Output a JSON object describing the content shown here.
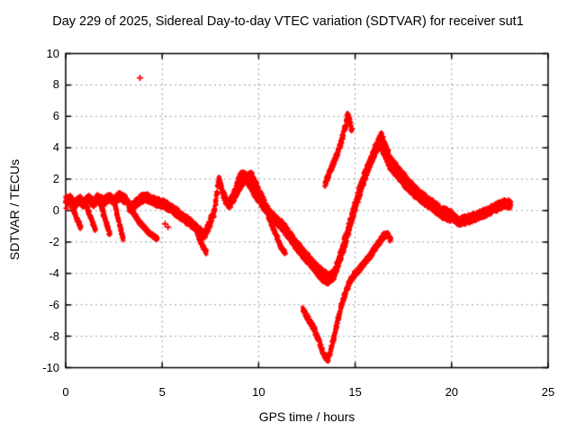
{
  "chart_data": {
    "type": "scatter",
    "title": "Day 229 of 2025, Sidereal Day-to-day VTEC variation (SDTVAR) for receiver sut1",
    "xlabel": "GPS time / hours",
    "ylabel": "SDTVAR / TECUs",
    "xlim": [
      0,
      25
    ],
    "ylim": [
      -10,
      10
    ],
    "x_ticks": [
      0,
      5,
      10,
      15,
      20,
      25
    ],
    "y_ticks": [
      10,
      8,
      6,
      4,
      2,
      0,
      -2,
      -4,
      -6,
      -8,
      -10
    ],
    "grid": true,
    "legend": "none",
    "marker": "plus",
    "marker_color": "#ff0000",
    "grid_color": "#9a9a9a",
    "border_color": "#000000",
    "series": [
      {
        "name": "main-band",
        "halfwidth": 0.28,
        "points": [
          [
            0.0,
            0.55
          ],
          [
            0.2,
            0.8
          ],
          [
            0.45,
            0.35
          ],
          [
            0.7,
            0.7
          ],
          [
            0.95,
            0.45
          ],
          [
            1.2,
            0.75
          ],
          [
            1.45,
            0.5
          ],
          [
            1.7,
            0.8
          ],
          [
            1.95,
            0.55
          ],
          [
            2.2,
            0.85
          ],
          [
            2.5,
            0.65
          ],
          [
            2.8,
            0.9
          ],
          [
            3.1,
            0.7
          ],
          [
            3.35,
            0.15
          ],
          [
            3.6,
            0.4
          ],
          [
            3.9,
            0.75
          ],
          [
            4.2,
            0.85
          ],
          [
            4.5,
            0.65
          ],
          [
            4.8,
            0.5
          ],
          [
            5.1,
            0.4
          ],
          [
            5.5,
            0.1
          ],
          [
            6.0,
            -0.35
          ],
          [
            6.5,
            -0.8
          ],
          [
            6.9,
            -1.3
          ],
          [
            7.15,
            -1.6
          ],
          [
            7.4,
            -1.0
          ],
          [
            7.7,
            -0.1
          ],
          [
            7.95,
            2.1
          ],
          [
            8.15,
            1.05
          ],
          [
            8.45,
            0.35
          ],
          [
            8.75,
            1.1
          ],
          [
            9.05,
            2.25
          ],
          [
            9.35,
            2.15
          ],
          [
            9.65,
            1.4
          ],
          [
            9.95,
            0.85
          ],
          [
            10.25,
            0.3
          ],
          [
            10.6,
            -0.25
          ],
          [
            10.95,
            -0.6
          ],
          [
            11.35,
            -1.1
          ],
          [
            11.75,
            -1.8
          ],
          [
            12.15,
            -2.45
          ],
          [
            12.55,
            -3.0
          ],
          [
            12.95,
            -3.6
          ],
          [
            13.35,
            -4.05
          ],
          [
            13.7,
            -4.3
          ],
          [
            14.0,
            -3.7
          ],
          [
            14.3,
            -2.6
          ],
          [
            14.6,
            -1.35
          ],
          [
            14.9,
            -0.05
          ],
          [
            15.2,
            1.2
          ],
          [
            15.5,
            2.3
          ],
          [
            15.8,
            3.2
          ],
          [
            16.1,
            4.1
          ],
          [
            16.35,
            4.75
          ],
          [
            16.6,
            3.95
          ],
          [
            16.9,
            3.1
          ],
          [
            17.25,
            2.5
          ],
          [
            17.6,
            2.0
          ],
          [
            18.0,
            1.45
          ],
          [
            18.4,
            1.0
          ],
          [
            18.8,
            0.6
          ],
          [
            19.2,
            0.25
          ],
          [
            19.6,
            -0.05
          ],
          [
            20.0,
            -0.3
          ],
          [
            20.35,
            -0.7
          ],
          [
            20.7,
            -0.6
          ],
          [
            21.1,
            -0.45
          ],
          [
            21.5,
            -0.25
          ],
          [
            21.9,
            -0.05
          ],
          [
            22.3,
            0.2
          ],
          [
            22.7,
            0.45
          ],
          [
            23.1,
            0.4
          ]
        ]
      },
      {
        "name": "second-band",
        "halfwidth": 0.22,
        "points": [
          [
            8.55,
            0.4
          ],
          [
            8.95,
            1.3
          ],
          [
            9.35,
            2.1
          ],
          [
            9.6,
            2.3
          ],
          [
            9.85,
            1.7
          ],
          [
            10.15,
            0.9
          ],
          [
            10.45,
            0.15
          ],
          [
            10.75,
            -0.45
          ],
          [
            11.15,
            -0.95
          ],
          [
            11.55,
            -1.6
          ],
          [
            11.95,
            -2.3
          ],
          [
            12.35,
            -2.9
          ],
          [
            12.75,
            -3.45
          ],
          [
            13.05,
            -3.95
          ],
          [
            13.35,
            -4.35
          ],
          [
            13.6,
            -4.5
          ],
          [
            13.9,
            -4.15
          ],
          [
            14.2,
            -3.2
          ],
          [
            14.5,
            -2.0
          ],
          [
            14.8,
            -0.7
          ],
          [
            15.1,
            0.55
          ],
          [
            15.4,
            1.75
          ],
          [
            15.7,
            2.75
          ],
          [
            16.0,
            3.6
          ],
          [
            16.25,
            4.3
          ],
          [
            16.5,
            3.65
          ],
          [
            16.8,
            2.85
          ],
          [
            17.2,
            2.25
          ],
          [
            17.6,
            1.65
          ],
          [
            18.0,
            1.15
          ],
          [
            18.4,
            0.75
          ],
          [
            18.8,
            0.35
          ],
          [
            19.2,
            0.0
          ],
          [
            19.6,
            -0.35
          ],
          [
            20.0,
            -0.55
          ]
        ]
      },
      {
        "name": "deep-strand",
        "halfwidth": 0.18,
        "points": [
          [
            12.3,
            -6.3
          ],
          [
            12.6,
            -6.95
          ],
          [
            12.9,
            -7.6
          ],
          [
            13.15,
            -8.4
          ],
          [
            13.4,
            -9.2
          ],
          [
            13.6,
            -9.5
          ],
          [
            13.75,
            -8.85
          ],
          [
            13.95,
            -7.8
          ],
          [
            14.15,
            -6.7
          ],
          [
            14.4,
            -5.6
          ],
          [
            14.7,
            -4.6
          ],
          [
            15.0,
            -4.0
          ],
          [
            15.3,
            -3.6
          ],
          [
            15.6,
            -3.15
          ],
          [
            15.9,
            -2.65
          ],
          [
            16.2,
            -2.1
          ],
          [
            16.5,
            -1.6
          ],
          [
            16.7,
            -1.55
          ],
          [
            16.85,
            -1.95
          ]
        ]
      },
      {
        "name": "spike-strand",
        "halfwidth": 0.22,
        "points": [
          [
            13.45,
            1.7
          ],
          [
            13.65,
            2.3
          ],
          [
            13.85,
            2.95
          ],
          [
            14.05,
            3.55
          ],
          [
            14.25,
            4.25
          ],
          [
            14.45,
            5.15
          ],
          [
            14.6,
            6.0
          ],
          [
            14.72,
            5.75
          ],
          [
            14.85,
            4.95
          ]
        ]
      },
      {
        "name": "branch-1",
        "halfwidth": 0.13,
        "points": [
          [
            0.2,
            0.7
          ],
          [
            0.5,
            -0.3
          ],
          [
            0.8,
            -1.1
          ]
        ]
      },
      {
        "name": "branch-2",
        "halfwidth": 0.13,
        "points": [
          [
            1.0,
            0.5
          ],
          [
            1.3,
            -0.45
          ],
          [
            1.55,
            -1.35
          ]
        ]
      },
      {
        "name": "branch-3",
        "halfwidth": 0.13,
        "points": [
          [
            1.75,
            0.6
          ],
          [
            2.05,
            -0.55
          ],
          [
            2.3,
            -1.6
          ]
        ]
      },
      {
        "name": "branch-4",
        "halfwidth": 0.13,
        "points": [
          [
            2.5,
            0.6
          ],
          [
            2.8,
            -0.95
          ],
          [
            3.0,
            -1.9
          ]
        ]
      },
      {
        "name": "branch-5",
        "halfwidth": 0.13,
        "points": [
          [
            3.3,
            0.3
          ],
          [
            3.8,
            -0.7
          ],
          [
            4.3,
            -1.4
          ],
          [
            4.75,
            -1.8
          ]
        ]
      },
      {
        "name": "branch-6",
        "halfwidth": 0.13,
        "points": [
          [
            6.85,
            -1.6
          ],
          [
            7.1,
            -2.25
          ],
          [
            7.3,
            -2.7
          ]
        ]
      },
      {
        "name": "branch-7",
        "halfwidth": 0.13,
        "points": [
          [
            10.5,
            -0.4
          ],
          [
            10.85,
            -1.4
          ],
          [
            11.15,
            -2.3
          ],
          [
            11.4,
            -2.75
          ]
        ]
      }
    ],
    "outlier_points": [
      [
        3.85,
        8.45
      ],
      [
        5.15,
        -0.85
      ],
      [
        5.3,
        -1.05
      ],
      [
        0.04,
        0.15
      ],
      [
        0.04,
        0.5
      ],
      [
        0.04,
        0.9
      ]
    ]
  }
}
